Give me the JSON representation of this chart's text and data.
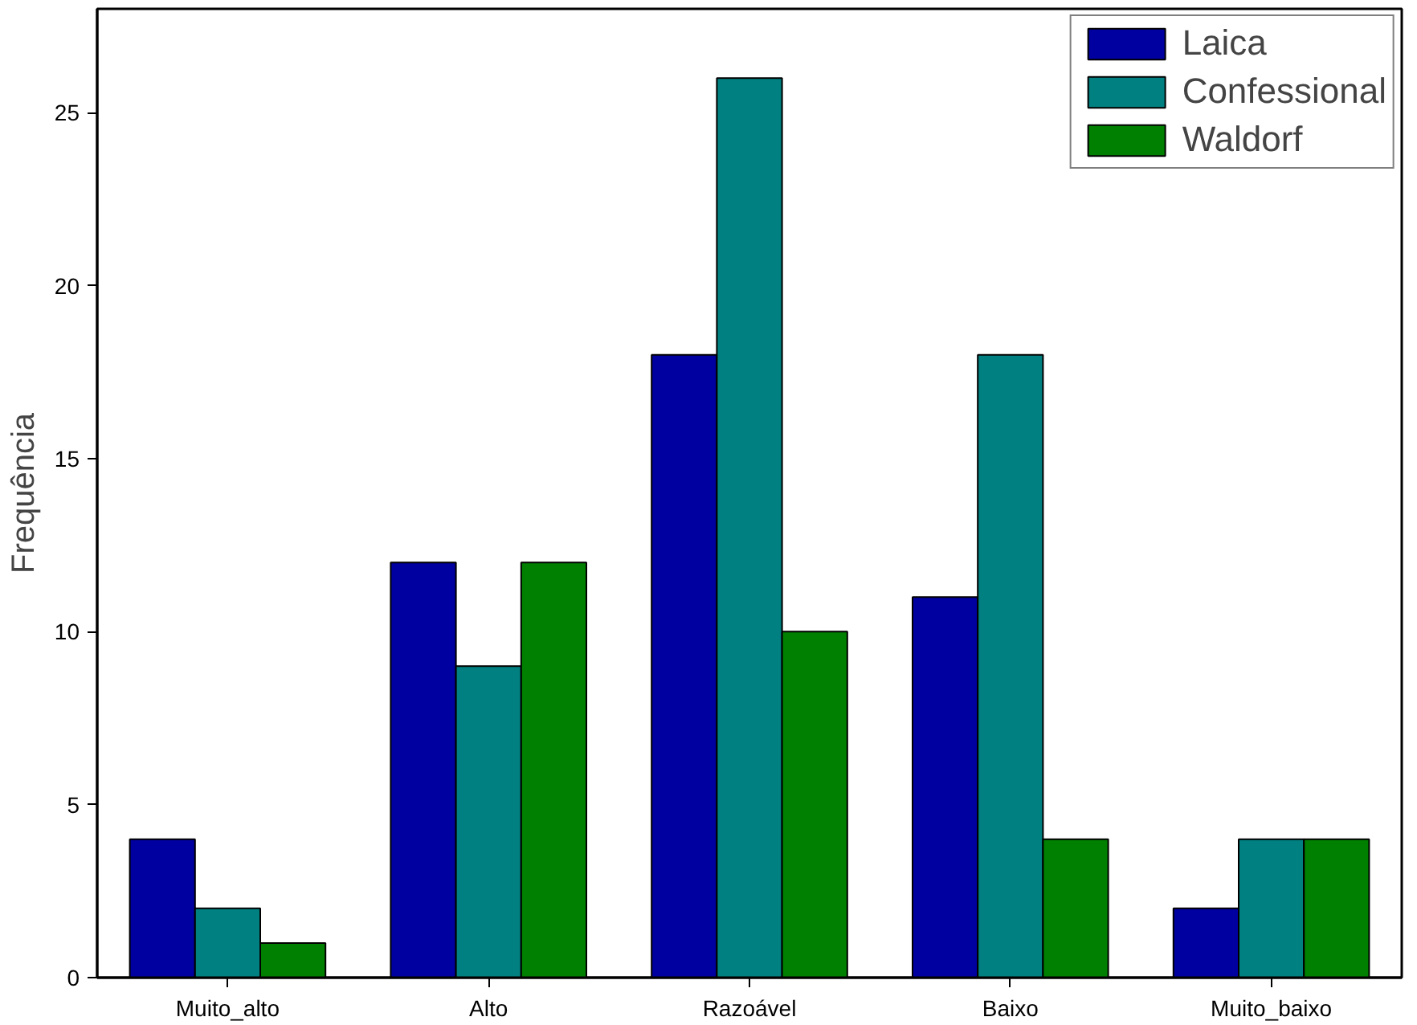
{
  "chart_data": {
    "type": "bar",
    "ylabel": "Frequência",
    "categories": [
      "Muito_alto",
      "Alto",
      "Razoável",
      "Baixo",
      "Muito_baixo"
    ],
    "series": [
      {
        "name": "Laica",
        "color": "#0000a0",
        "values": [
          4,
          12,
          18,
          11,
          2
        ]
      },
      {
        "name": "Confessional",
        "color": "#008080",
        "values": [
          2,
          9,
          26,
          18,
          4
        ]
      },
      {
        "name": "Waldorf",
        "color": "#008000",
        "values": [
          1,
          12,
          10,
          4,
          4
        ]
      }
    ],
    "ylim": [
      0,
      28
    ],
    "yticks": [
      0,
      5,
      10,
      15,
      20,
      25
    ],
    "grid": false,
    "legend": "top right"
  }
}
